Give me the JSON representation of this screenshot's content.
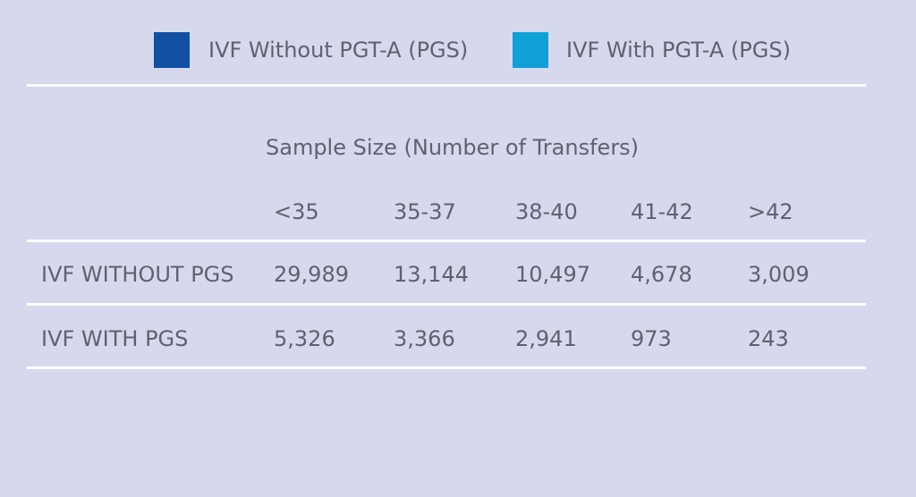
{
  "chart_data": {
    "type": "table",
    "legend": [
      {
        "label": "IVF Without PGT-A (PGS)",
        "color": "#1150a3"
      },
      {
        "label": "IVF With PGT-A (PGS)",
        "color": "#0fa0d8"
      }
    ],
    "caption": "Sample Size (Number of Transfers)",
    "columns": [
      "<35",
      "35-37",
      "38-40",
      "41-42",
      ">42"
    ],
    "rows": [
      {
        "label": "IVF WITHOUT PGS",
        "values": [
          "29,989",
          "13,144",
          "10,497",
          "4,678",
          "3,009"
        ]
      },
      {
        "label": "IVF WITH PGS",
        "values": [
          "5,326",
          "3,366",
          "2,941",
          "973",
          "243"
        ]
      }
    ]
  }
}
